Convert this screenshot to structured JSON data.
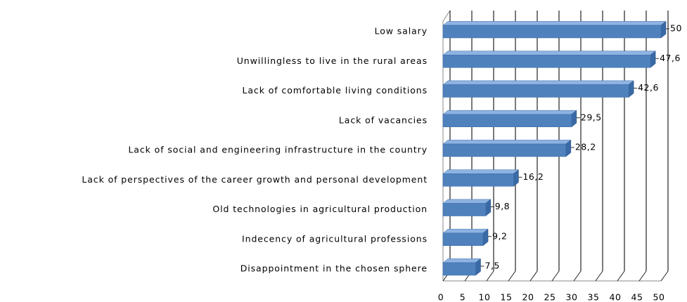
{
  "chart_data": {
    "type": "bar3d_horizontal",
    "categories": [
      "Low salary",
      "Unwillingless to live in the rural areas",
      "Lack of comfortable living conditions",
      "Lack of vacancies",
      "Lack of social and engineering infrastructure in the country",
      "Lack of perspectives of the career growth and personal development",
      "Old technologies in agricultural production",
      "Indecency of agricultural professions",
      "Disappointment in the chosen sphere"
    ],
    "values": [
      50,
      47.6,
      42.6,
      29.5,
      28.2,
      16.2,
      9.8,
      9.2,
      7.5
    ],
    "value_labels": [
      "50",
      "47,6",
      "42,6",
      "29,5",
      "28,2",
      "16,2",
      "9,8",
      "9,2",
      "7,5"
    ],
    "color": "#4f81bd",
    "xlim": [
      0,
      50
    ],
    "xticks": [
      0,
      5,
      10,
      15,
      20,
      25,
      30,
      35,
      40,
      45,
      50
    ],
    "grid": true
  }
}
